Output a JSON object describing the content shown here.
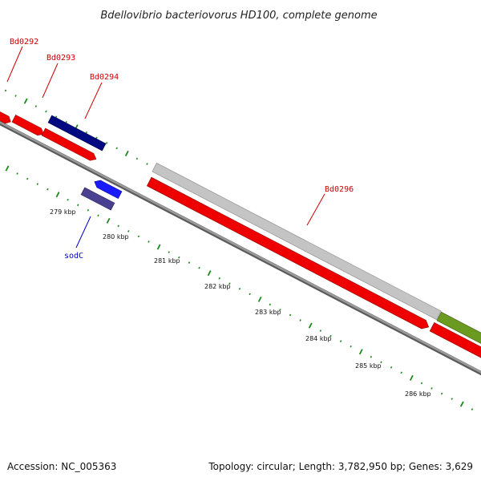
{
  "title": "Bdellovibrio bacteriovorus HD100, complete genome",
  "accession": "Accession: NC_005363",
  "summary": "Topology: circular; Length: 3,782,950 bp; Genes: 3,629",
  "colors": {
    "background": "#ffffff",
    "backbone": "#8a8a8a",
    "tick": "#1e8a1e",
    "red_feature": "#ee0000",
    "red_label": "#cc0000",
    "blue_label": "#0000cc",
    "navy_feature": "#000a80",
    "blue_feature": "#1a1aff",
    "purple_feature": "#4a4090",
    "gray_feature": "#c4c4c4",
    "olive_feature": "#6a9a20"
  },
  "gene_labels": [
    {
      "id": "bd0292",
      "text": "Bd0292",
      "color": "#cc0000"
    },
    {
      "id": "bd0293",
      "text": "Bd0293",
      "color": "#cc0000"
    },
    {
      "id": "bd0294",
      "text": "Bd0294",
      "color": "#cc0000"
    },
    {
      "id": "bd0296",
      "text": "Bd0296",
      "color": "#cc0000"
    },
    {
      "id": "sodc",
      "text": "sodC",
      "color": "#0000cc"
    }
  ],
  "kbp_labels": [
    "279 kbp",
    "280 kbp",
    "281 kbp",
    "282 kbp",
    "283 kbp",
    "284 kbp",
    "285 kbp",
    "286 kbp"
  ]
}
